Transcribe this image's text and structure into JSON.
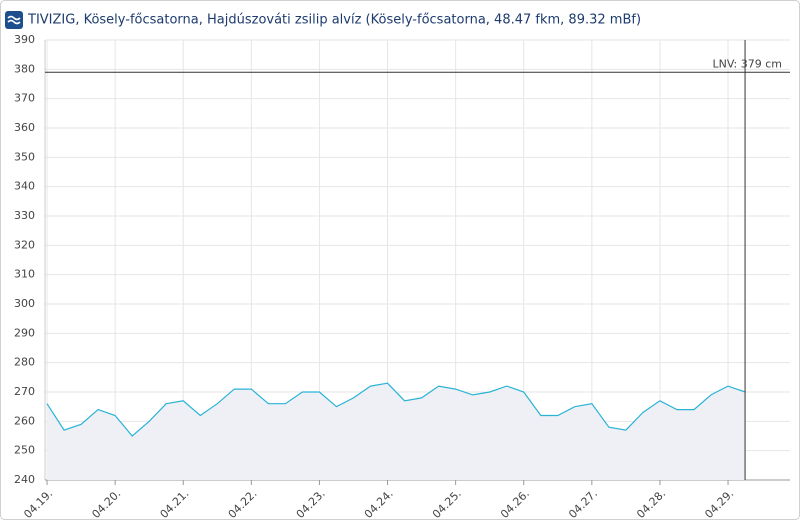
{
  "chart_data": {
    "type": "area",
    "title": "TIVIZIG, Kösely-főcsatorna, Hajdúszováti zsilip alvíz (Kösely-főcsatorna, 48.47 fkm, 89.32 mBf)",
    "x": [
      19,
      19.25,
      19.5,
      19.75,
      20,
      20.25,
      20.5,
      20.75,
      21,
      21.25,
      21.5,
      21.75,
      22,
      22.25,
      22.5,
      22.75,
      23,
      23.25,
      23.5,
      23.75,
      24,
      24.25,
      24.5,
      24.75,
      25,
      25.25,
      25.5,
      25.75,
      26,
      26.25,
      26.5,
      26.75,
      27,
      27.25,
      27.5,
      27.75,
      28,
      28.25,
      28.5,
      28.75,
      29,
      29.25
    ],
    "values": [
      266,
      257,
      259,
      264,
      262,
      255,
      260,
      266,
      267,
      262,
      266,
      271,
      271,
      266,
      266,
      270,
      270,
      265,
      268,
      272,
      273,
      267,
      268,
      272,
      271,
      269,
      270,
      272,
      270,
      262,
      262,
      265,
      266,
      258,
      257,
      263,
      267,
      264,
      264,
      269,
      272,
      270
    ],
    "color": "#2bb3d6",
    "fill": "#eef0f6",
    "xlim": [
      18.97,
      29.91
    ],
    "xticks": [
      {
        "value": 19,
        "label": "04.19."
      },
      {
        "value": 20,
        "label": "04.20."
      },
      {
        "value": 21,
        "label": "04.21."
      },
      {
        "value": 22,
        "label": "04.22."
      },
      {
        "value": 23,
        "label": "04.23."
      },
      {
        "value": 24,
        "label": "04.24."
      },
      {
        "value": 25,
        "label": "04.25."
      },
      {
        "value": 26,
        "label": "04.26."
      },
      {
        "value": 27,
        "label": "04.27."
      },
      {
        "value": 28,
        "label": "04.28."
      },
      {
        "value": 29,
        "label": "04.29."
      }
    ],
    "ylim": [
      240,
      390
    ],
    "yticks": [
      240,
      250,
      260,
      270,
      280,
      290,
      300,
      310,
      320,
      330,
      340,
      350,
      360,
      370,
      380,
      390
    ],
    "grid": true,
    "reference_line": {
      "value": 379,
      "label": "LNV: 379 cm"
    }
  }
}
